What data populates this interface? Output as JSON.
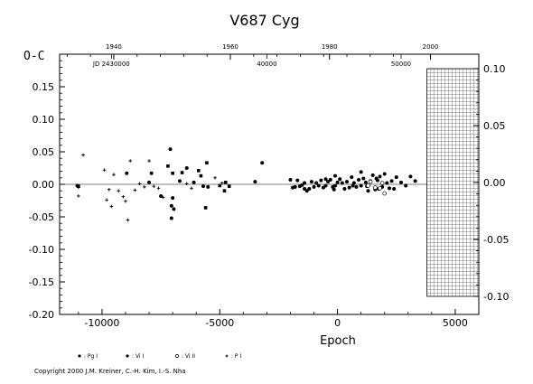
{
  "chart_data": {
    "type": "scatter",
    "title": "V687  Cyg",
    "ylabel": "O-C",
    "xlabel": "Epoch",
    "xlim": [
      -11800,
      6000
    ],
    "ylim": [
      -0.2,
      0.2
    ],
    "right_ylim": [
      -0.1,
      0.1
    ],
    "x_ticks": [
      -10000,
      -5000,
      0,
      5000
    ],
    "y_ticks": [
      -0.2,
      -0.15,
      -0.1,
      -0.05,
      0.0,
      0.05,
      0.1,
      0.15
    ],
    "y_tick_labels": [
      "-0.20",
      "-0.15",
      "-0.10",
      "-0.05",
      "0.00",
      "0.05",
      "0.10",
      "0.15"
    ],
    "right_y_ticks": [
      -0.1,
      -0.05,
      0.0,
      0.05,
      0.1
    ],
    "right_y_tick_labels": [
      "-0.10",
      "-0.05",
      "0.00",
      "0.05",
      "0.10"
    ],
    "year_axis": [
      {
        "epoch": -9500,
        "label": "1940"
      },
      {
        "epoch": -4550,
        "label": "1960"
      },
      {
        "epoch": -340,
        "label": "1980"
      },
      {
        "epoch": 3950,
        "label": "2000"
      }
    ],
    "jd_axis": [
      {
        "epoch": -9600,
        "label": "JD 2430000"
      },
      {
        "epoch": -3000,
        "label": "40000"
      },
      {
        "epoch": 2700,
        "label": "50000"
      }
    ],
    "hatched_region_start": 3800,
    "grid": false,
    "legend_position": "bottom-left",
    "legend": [
      {
        "marker": "square",
        "label": ": Pg I"
      },
      {
        "marker": "filled-circle",
        "label": ": Vi I"
      },
      {
        "marker": "open-circle",
        "label": ": Vi II"
      },
      {
        "marker": "plus",
        "label": ": P I"
      }
    ],
    "series": [
      {
        "marker": "square",
        "points": [
          [
            -11000,
            -0.003
          ],
          [
            -7200,
            0.028
          ],
          [
            -7000,
            0.017
          ],
          [
            -6600,
            0.018
          ],
          [
            -5900,
            0.021
          ],
          [
            -5800,
            0.013
          ],
          [
            -5600,
            -0.036
          ],
          [
            -5550,
            0.033
          ],
          [
            -5000,
            -0.002
          ],
          [
            -4800,
            -0.01
          ],
          [
            -4750,
            0.003
          ],
          [
            -4600,
            -0.003
          ]
        ]
      },
      {
        "marker": "filled-circle",
        "points": [
          [
            -11050,
            -0.002
          ],
          [
            -8950,
            0.017
          ],
          [
            -8000,
            0.003
          ],
          [
            -7900,
            0.017
          ],
          [
            -7500,
            -0.018
          ],
          [
            -7100,
            0.054
          ],
          [
            -7050,
            -0.033
          ],
          [
            -7050,
            -0.052
          ],
          [
            -7000,
            -0.021
          ],
          [
            -6950,
            -0.038
          ],
          [
            -6700,
            0.005
          ],
          [
            -6400,
            0.025
          ],
          [
            -6100,
            0.003
          ],
          [
            -5700,
            -0.003
          ],
          [
            -5500,
            -0.004
          ],
          [
            -3500,
            0.004
          ],
          [
            -3200,
            0.033
          ],
          [
            -2000,
            0.007
          ],
          [
            -1900,
            -0.005
          ],
          [
            -1800,
            -0.004
          ],
          [
            -1700,
            0.006
          ],
          [
            -1600,
            -0.003
          ],
          [
            -1500,
            -0.001
          ],
          [
            -1400,
            0.002
          ],
          [
            -1300,
            -0.01
          ],
          [
            -1200,
            -0.007
          ],
          [
            -1100,
            0.004
          ],
          [
            -1000,
            -0.004
          ],
          [
            -900,
            0.002
          ],
          [
            -800,
            -0.002
          ],
          [
            -700,
            0.006
          ],
          [
            -600,
            -0.005
          ],
          [
            -500,
            -0.002
          ],
          [
            -400,
            0.004
          ],
          [
            -300,
            0.007
          ],
          [
            -200,
            -0.004
          ],
          [
            -100,
            -0.002
          ],
          [
            0,
            0.003
          ],
          [
            100,
            0.008
          ],
          [
            200,
            0.002
          ],
          [
            300,
            -0.007
          ],
          [
            400,
            0.004
          ],
          [
            500,
            -0.005
          ],
          [
            600,
            0.011
          ],
          [
            700,
            0.002
          ],
          [
            800,
            -0.004
          ],
          [
            900,
            0.007
          ],
          [
            1000,
            -0.002
          ],
          [
            1100,
            0.009
          ],
          [
            1200,
            0.003
          ],
          [
            1300,
            -0.01
          ],
          [
            1400,
            0.005
          ],
          [
            1500,
            0.014
          ],
          [
            1600,
            -0.008
          ],
          [
            1700,
            0.006
          ],
          [
            1800,
            0.012
          ],
          [
            1900,
            -0.004
          ],
          [
            2000,
            0.016
          ],
          [
            2100,
            0.002
          ],
          [
            2200,
            -0.006
          ],
          [
            2300,
            0.005
          ],
          [
            2500,
            0.011
          ],
          [
            2700,
            0.003
          ],
          [
            2900,
            -0.002
          ],
          [
            3100,
            0.012
          ],
          [
            3300,
            0.005
          ],
          [
            -1400,
            -0.007
          ],
          [
            -150,
            -0.008
          ],
          [
            650,
            -0.002
          ],
          [
            1250,
            -0.003
          ],
          [
            1750,
            -0.007
          ],
          [
            2400,
            -0.007
          ],
          [
            1000,
            0.019
          ],
          [
            -100,
            0.013
          ],
          [
            -500,
            0.008
          ],
          [
            1650,
            0.009
          ]
        ]
      },
      {
        "marker": "open-circle",
        "points": [
          [
            1300,
            -0.002
          ],
          [
            1400,
            0.004
          ],
          [
            1600,
            -0.005
          ],
          [
            1800,
            -0.006
          ],
          [
            1900,
            0.002
          ],
          [
            2000,
            -0.014
          ]
        ]
      },
      {
        "marker": "plus",
        "points": [
          [
            -11000,
            -0.018
          ],
          [
            -11000,
            -0.005
          ],
          [
            -10800,
            0.045
          ],
          [
            -9900,
            0.022
          ],
          [
            -9800,
            -0.024
          ],
          [
            -9700,
            -0.008
          ],
          [
            -9600,
            -0.034
          ],
          [
            -9500,
            0.015
          ],
          [
            -9300,
            -0.01
          ],
          [
            -9100,
            -0.019
          ],
          [
            -9000,
            -0.026
          ],
          [
            -8900,
            -0.055
          ],
          [
            -8800,
            0.036
          ],
          [
            -8600,
            -0.009
          ],
          [
            -8400,
            0.001
          ],
          [
            -8200,
            -0.004
          ],
          [
            -8000,
            0.036
          ],
          [
            -7800,
            -0.003
          ],
          [
            -7600,
            -0.006
          ],
          [
            -7400,
            -0.02
          ],
          [
            -6400,
            0.001
          ],
          [
            -6200,
            -0.006
          ],
          [
            -5200,
            0.01
          ],
          [
            -4900,
            0.002
          ]
        ]
      }
    ]
  },
  "copyright": "Copyright 2000 J.M. Kreiner, C.-H. Kim, I.-S. Nha"
}
